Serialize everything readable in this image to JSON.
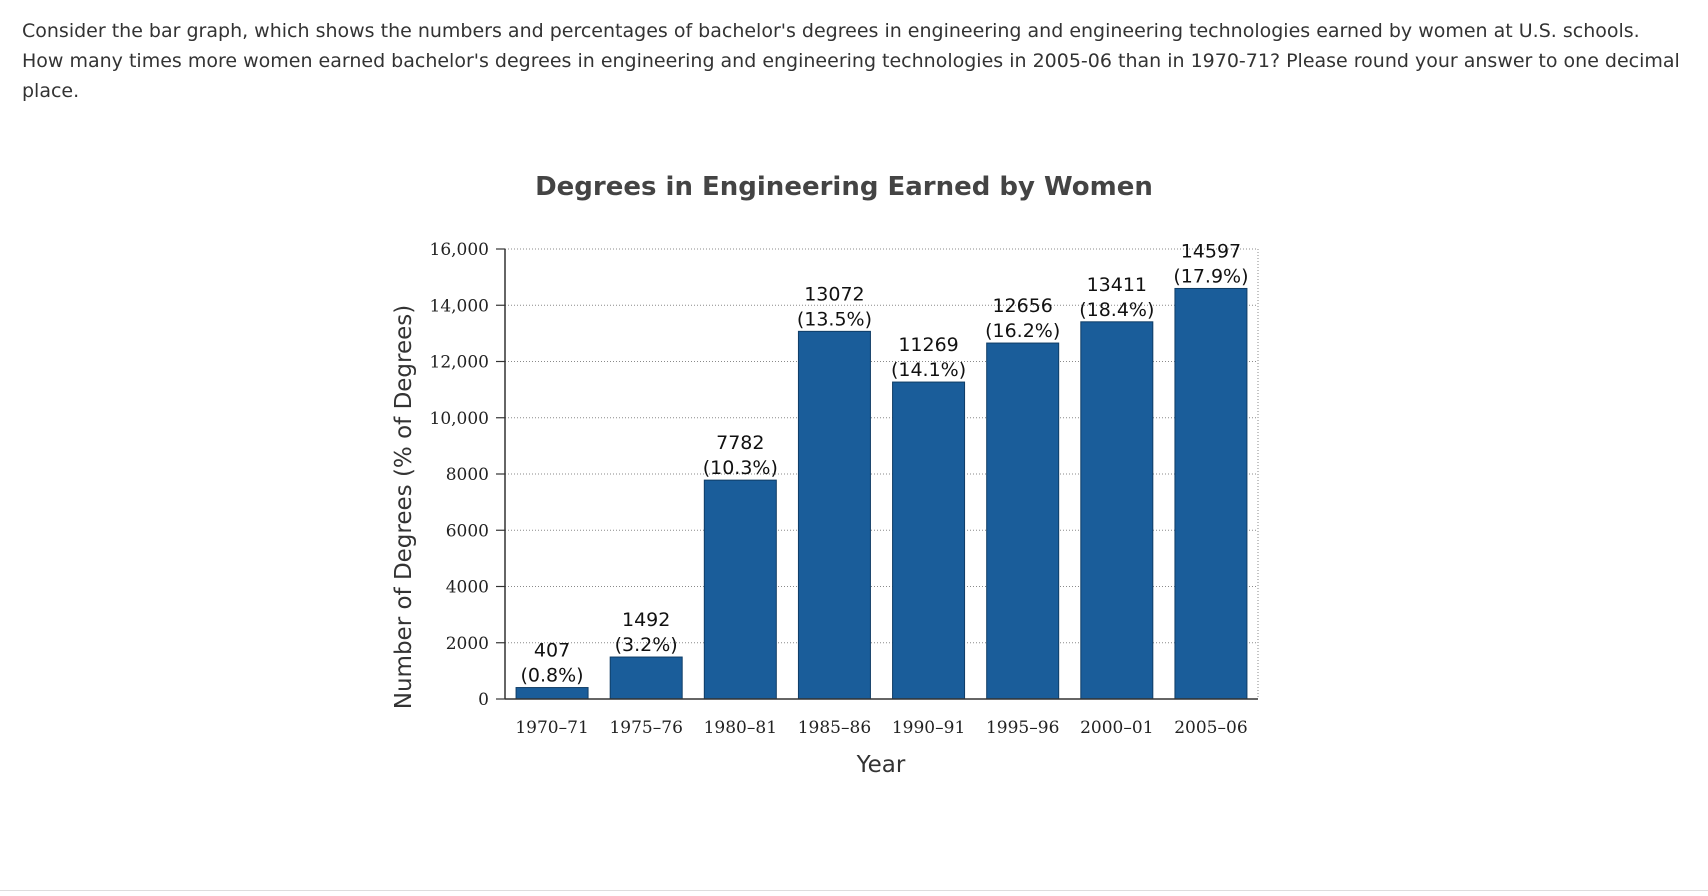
{
  "question": {
    "text": "Consider the bar graph, which shows the numbers and percentages of bachelor's degrees in engineering and engineering technologies earned by women at U.S. schools. How many times more women earned bachelor's degrees in engineering and engineering technologies in 2005-06 than in 1970-71? Please round your answer to one decimal place."
  },
  "chart_data": {
    "type": "bar",
    "title": "Degrees in Engineering Earned by Women",
    "xlabel": "Year",
    "ylabel": "Number of Degrees (% of Degrees)",
    "categories": [
      "1970–71",
      "1975–76",
      "1980–81",
      "1985–86",
      "1990–91",
      "1995–96",
      "2000–01",
      "2005–06"
    ],
    "values": [
      407,
      1492,
      7782,
      13072,
      11269,
      12656,
      13411,
      14597
    ],
    "percent_labels": [
      "(0.8%)",
      "(3.2%)",
      "(10.3%)",
      "(13.5%)",
      "(14.1%)",
      "(16.2%)",
      "(18.4%)",
      "(17.9%)"
    ],
    "ylim": [
      0,
      16000
    ],
    "yticks": [
      0,
      2000,
      4000,
      6000,
      8000,
      10000,
      12000,
      14000,
      16000
    ],
    "ytick_labels": [
      "0",
      "2000",
      "4000",
      "6000",
      "8000",
      "10,000",
      "12,000",
      "14,000",
      "16,000"
    ],
    "grid": true,
    "bar_color": "#1a5d9a"
  }
}
